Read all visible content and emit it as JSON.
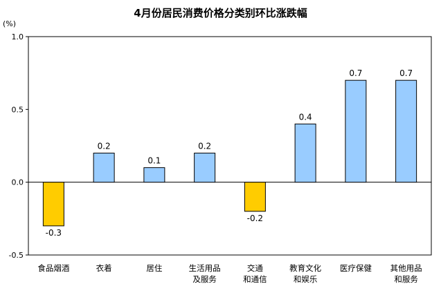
{
  "chart_data": {
    "type": "bar",
    "title": "4月份居民消费价格分类别环比涨跌幅",
    "unit_label": "(%)",
    "xlabel": "",
    "ylabel": "",
    "ylim": [
      -0.5,
      1.0
    ],
    "yticks": [
      "1.0",
      "0.5",
      "0.0",
      "-0.5"
    ],
    "ytick_values": [
      1.0,
      0.5,
      0.0,
      -0.5
    ],
    "categories": [
      [
        "食品烟酒"
      ],
      [
        "衣着"
      ],
      [
        "居住"
      ],
      [
        "生活用品",
        "及服务"
      ],
      [
        "交通",
        "和通信"
      ],
      [
        "教育文化",
        "和娱乐"
      ],
      [
        "医疗保健"
      ],
      [
        "其他用品",
        "和服务"
      ]
    ],
    "values": [
      -0.3,
      0.2,
      0.1,
      0.2,
      -0.2,
      0.4,
      0.7,
      0.7
    ],
    "value_labels": [
      "-0.3",
      "0.2",
      "0.1",
      "0.2",
      "-0.2",
      "0.4",
      "0.7",
      "0.7"
    ],
    "colors": {
      "positive": "#99ccff",
      "negative": "#ffcc00",
      "border": "#000000",
      "axis": "#000000"
    },
    "grid": false,
    "legend": "none"
  }
}
